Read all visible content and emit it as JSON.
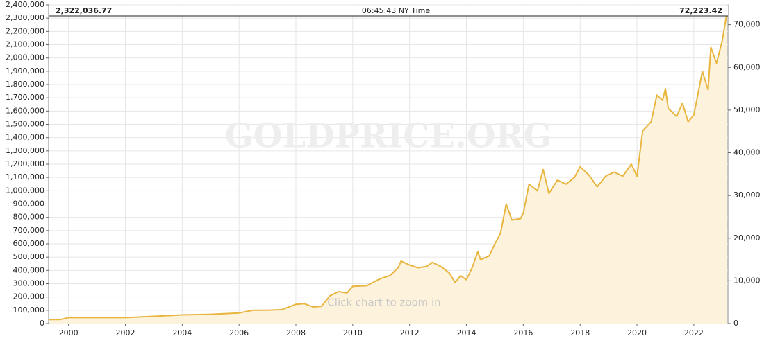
{
  "chart_data": {
    "type": "area",
    "header_left": "2,322,036.77",
    "header_center": "06:45:43 NY Time",
    "header_right": "72,223.42",
    "watermark": "GOLDPRICE.ORG",
    "hint": "Click chart to zoom in",
    "color": "#e8b53f",
    "fill": "#fdf3dc",
    "grid": true,
    "xlim": [
      1999.3,
      2023.2
    ],
    "xticks": [
      2000,
      2002,
      2004,
      2006,
      2008,
      2010,
      2012,
      2014,
      2016,
      2018,
      2020,
      2022
    ],
    "ylim": [
      0,
      2400000
    ],
    "yticks": [
      {
        "value": 0,
        "label": "0"
      },
      {
        "value": 100000,
        "label": "100,000"
      },
      {
        "value": 200000,
        "label": "200,000"
      },
      {
        "value": 300000,
        "label": "300,000"
      },
      {
        "value": 400000,
        "label": "400,000"
      },
      {
        "value": 500000,
        "label": "500,000"
      },
      {
        "value": 600000,
        "label": "600,000"
      },
      {
        "value": 700000,
        "label": "700,000"
      },
      {
        "value": 800000,
        "label": "800,000"
      },
      {
        "value": 900000,
        "label": "900,000"
      },
      {
        "value": 1000000,
        "label": "1,000,000"
      },
      {
        "value": 1100000,
        "label": "1,100,000"
      },
      {
        "value": 1200000,
        "label": "1,200,000"
      },
      {
        "value": 1300000,
        "label": "1,300,000"
      },
      {
        "value": 1400000,
        "label": "1,400,000"
      },
      {
        "value": 1500000,
        "label": "1,500,000"
      },
      {
        "value": 1600000,
        "label": "1,600,000"
      },
      {
        "value": 1700000,
        "label": "1,700,000"
      },
      {
        "value": 1800000,
        "label": "1,800,000"
      },
      {
        "value": 1900000,
        "label": "1,900,000"
      },
      {
        "value": 2000000,
        "label": "2,000,000"
      },
      {
        "value": 2100000,
        "label": "2,100,000"
      },
      {
        "value": 2200000,
        "label": "2,200,000"
      },
      {
        "value": 2300000,
        "label": "2,300,000"
      },
      {
        "value": 2400000,
        "label": "2,400,000"
      }
    ],
    "y2lim": [
      0,
      74648
    ],
    "y2ticks": [
      {
        "value": 0,
        "label": "0"
      },
      {
        "value": 10000,
        "label": "10,000"
      },
      {
        "value": 20000,
        "label": "20,000"
      },
      {
        "value": 30000,
        "label": "30,000"
      },
      {
        "value": 40000,
        "label": "40,000"
      },
      {
        "value": 50000,
        "label": "50,000"
      },
      {
        "value": 60000,
        "label": "60,000"
      },
      {
        "value": 70000,
        "label": "70,000"
      }
    ],
    "x": [
      1999.3,
      1999.7,
      2000,
      2001,
      2002,
      2003,
      2004,
      2005,
      2006,
      2006.5,
      2007,
      2007.5,
      2008,
      2008.3,
      2008.6,
      2008.9,
      2009.2,
      2009.5,
      2009.8,
      2010,
      2010.5,
      2010.8,
      2011,
      2011.3,
      2011.6,
      2011.7,
      2012,
      2012.3,
      2012.6,
      2012.8,
      2013.1,
      2013.4,
      2013.6,
      2013.8,
      2014,
      2014.2,
      2014.4,
      2014.5,
      2014.8,
      2015,
      2015.2,
      2015.4,
      2015.6,
      2015.9,
      2016,
      2016.2,
      2016.5,
      2016.7,
      2016.9,
      2017.2,
      2017.5,
      2017.8,
      2018,
      2018.3,
      2018.6,
      2018.9,
      2019.2,
      2019.5,
      2019.8,
      2020,
      2020.2,
      2020.5,
      2020.7,
      2020.9,
      2021,
      2021.1,
      2021.4,
      2021.6,
      2021.8,
      2022,
      2022.3,
      2022.5,
      2022.6,
      2022.8,
      2023,
      2023.15
    ],
    "values": [
      30000,
      30000,
      45000,
      45000,
      45000,
      55000,
      65000,
      70000,
      80000,
      100000,
      100000,
      105000,
      145000,
      150000,
      125000,
      130000,
      210000,
      240000,
      230000,
      280000,
      285000,
      320000,
      340000,
      360000,
      420000,
      470000,
      440000,
      420000,
      430000,
      460000,
      430000,
      380000,
      310000,
      360000,
      330000,
      420000,
      540000,
      480000,
      510000,
      600000,
      680000,
      900000,
      780000,
      790000,
      830000,
      1050000,
      1000000,
      1160000,
      980000,
      1080000,
      1050000,
      1100000,
      1180000,
      1120000,
      1030000,
      1110000,
      1140000,
      1110000,
      1200000,
      1110000,
      1450000,
      1520000,
      1720000,
      1680000,
      1770000,
      1620000,
      1560000,
      1660000,
      1520000,
      1570000,
      1900000,
      1760000,
      2080000,
      1960000,
      2130000,
      2322036.77
    ]
  }
}
